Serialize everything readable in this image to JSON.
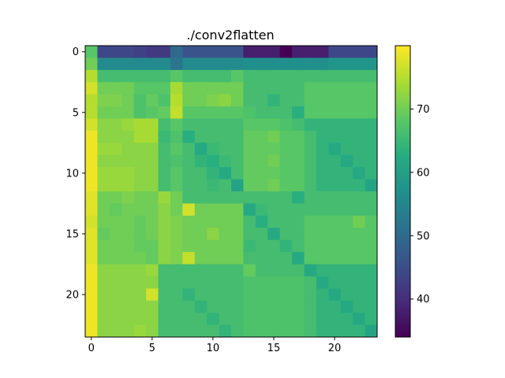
{
  "chart_data": {
    "type": "heatmap",
    "title": "./conv2flatten",
    "xlabel": "",
    "ylabel": "",
    "rows": 24,
    "cols": 24,
    "x_ticks": [
      0,
      5,
      10,
      15,
      20
    ],
    "y_ticks": [
      0,
      5,
      10,
      15,
      20
    ],
    "colorbar": {
      "min": 34,
      "max": 80,
      "ticks": [
        40,
        50,
        60,
        70
      ]
    },
    "colormap": "viridis",
    "values": [
      [
        68,
        44,
        44,
        44,
        43,
        42,
        42,
        50,
        46,
        46,
        46,
        46,
        46,
        38,
        38,
        38,
        34,
        38,
        38,
        38,
        44,
        44,
        44,
        44
      ],
      [
        70,
        56,
        56,
        56,
        56,
        56,
        56,
        52,
        56,
        56,
        56,
        56,
        56,
        57,
        57,
        57,
        57,
        57,
        57,
        57,
        58,
        58,
        58,
        58
      ],
      [
        75,
        66,
        66,
        66,
        66,
        66,
        66,
        68,
        66,
        66,
        66,
        66,
        68,
        66,
        66,
        66,
        66,
        66,
        66,
        66,
        66,
        66,
        66,
        66
      ],
      [
        77,
        70,
        70,
        70,
        68,
        68,
        68,
        74,
        70,
        70,
        70,
        70,
        70,
        66,
        66,
        66,
        66,
        66,
        68,
        68,
        68,
        68,
        68,
        68
      ],
      [
        75,
        71,
        71,
        70,
        67,
        69,
        67,
        75,
        70,
        70,
        71,
        72,
        70,
        66,
        66,
        64,
        66,
        66,
        68,
        68,
        68,
        68,
        68,
        68
      ],
      [
        75,
        70,
        70,
        70,
        67,
        68,
        69,
        76,
        68,
        68,
        68,
        68,
        68,
        67,
        66,
        66,
        66,
        63,
        68,
        68,
        68,
        68,
        68,
        68
      ],
      [
        77,
        72,
        72,
        73,
        74,
        74,
        66,
        68,
        66,
        66,
        66,
        66,
        66,
        68,
        68,
        68,
        67,
        66,
        64,
        64,
        64,
        64,
        64,
        64
      ],
      [
        79,
        72,
        72,
        72,
        74,
        74,
        65,
        67,
        63,
        66,
        66,
        66,
        66,
        69,
        69,
        70,
        68,
        68,
        66,
        64,
        64,
        64,
        64,
        64
      ],
      [
        79,
        73,
        73,
        72,
        72,
        72,
        66,
        68,
        66,
        62,
        65,
        66,
        66,
        69,
        69,
        69,
        68,
        68,
        66,
        64,
        62,
        64,
        64,
        64
      ],
      [
        79,
        72,
        72,
        72,
        72,
        72,
        66,
        67,
        66,
        64,
        63,
        65,
        66,
        69,
        69,
        70,
        68,
        68,
        66,
        64,
        64,
        62,
        64,
        64
      ],
      [
        79,
        73,
        73,
        73,
        72,
        72,
        66,
        68,
        66,
        66,
        64,
        62,
        66,
        69,
        69,
        69,
        68,
        68,
        66,
        64,
        64,
        64,
        62,
        64
      ],
      [
        79,
        73,
        73,
        73,
        72,
        72,
        66,
        68,
        66,
        66,
        65,
        66,
        61,
        69,
        69,
        70,
        68,
        68,
        66,
        64,
        64,
        64,
        64,
        61
      ],
      [
        78,
        70,
        70,
        71,
        70,
        70,
        73,
        70,
        66,
        66,
        66,
        66,
        66,
        66,
        66,
        66,
        66,
        63,
        66,
        66,
        66,
        66,
        66,
        66
      ],
      [
        78,
        70,
        69,
        70,
        70,
        70,
        72,
        70,
        77,
        70,
        70,
        70,
        70,
        62,
        65,
        66,
        66,
        66,
        66,
        66,
        66,
        66,
        66,
        66
      ],
      [
        77,
        70,
        70,
        70,
        69,
        70,
        72,
        71,
        70,
        70,
        70,
        70,
        70,
        66,
        63,
        66,
        66,
        66,
        68,
        68,
        68,
        68,
        70,
        68
      ],
      [
        78,
        69,
        70,
        70,
        69,
        70,
        72,
        71,
        70,
        70,
        72,
        70,
        70,
        66,
        66,
        62,
        66,
        66,
        68,
        68,
        68,
        68,
        68,
        68
      ],
      [
        78,
        70,
        70,
        70,
        69,
        69,
        72,
        71,
        70,
        70,
        70,
        70,
        70,
        65,
        66,
        66,
        64,
        66,
        68,
        68,
        68,
        68,
        68,
        68
      ],
      [
        78,
        70,
        70,
        70,
        70,
        69,
        72,
        71,
        76,
        70,
        70,
        70,
        70,
        66,
        66,
        66,
        66,
        62,
        68,
        68,
        68,
        68,
        68,
        68
      ],
      [
        79,
        72,
        72,
        72,
        72,
        73,
        66,
        66,
        66,
        66,
        66,
        66,
        66,
        69,
        66,
        66,
        66,
        66,
        62,
        64,
        64,
        64,
        64,
        64
      ],
      [
        79,
        72,
        72,
        72,
        72,
        72,
        66,
        66,
        66,
        66,
        66,
        66,
        66,
        67,
        67,
        67,
        67,
        67,
        66,
        62,
        64,
        64,
        64,
        64
      ],
      [
        79,
        72,
        72,
        72,
        72,
        77,
        66,
        66,
        64,
        66,
        66,
        66,
        66,
        67,
        67,
        67,
        67,
        67,
        66,
        64,
        62,
        64,
        64,
        64
      ],
      [
        79,
        72,
        72,
        72,
        72,
        72,
        66,
        66,
        66,
        64,
        66,
        66,
        66,
        67,
        67,
        67,
        67,
        67,
        66,
        64,
        64,
        62,
        64,
        64
      ],
      [
        79,
        72,
        72,
        72,
        72,
        72,
        66,
        66,
        66,
        66,
        64,
        66,
        66,
        67,
        67,
        67,
        67,
        67,
        66,
        64,
        64,
        64,
        62,
        64
      ],
      [
        79,
        72,
        72,
        72,
        73,
        72,
        66,
        66,
        66,
        66,
        66,
        64,
        66,
        67,
        67,
        67,
        67,
        67,
        66,
        64,
        64,
        64,
        64,
        61
      ]
    ]
  }
}
